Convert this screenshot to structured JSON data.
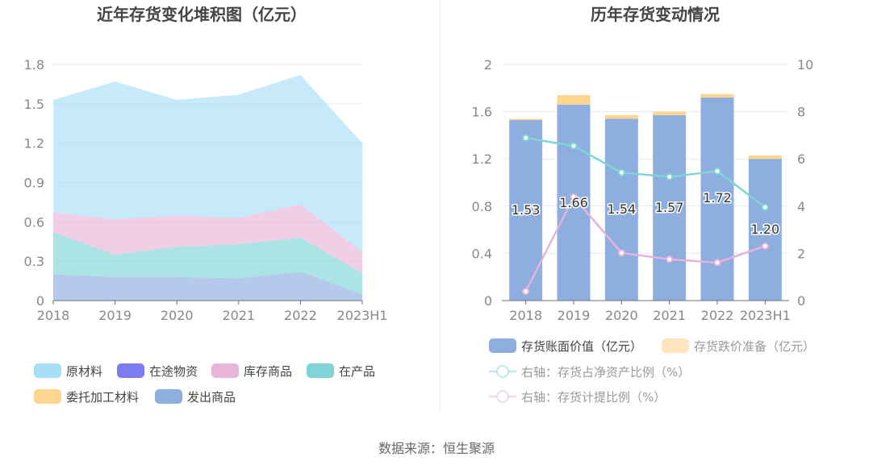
{
  "footer": "数据来源：恒生聚源",
  "chart_data": [
    {
      "type": "area",
      "stacked": true,
      "title": "近年存货变化堆积图（亿元）",
      "categories": [
        "2018",
        "2019",
        "2020",
        "2021",
        "2022",
        "2023H1"
      ],
      "ylim": [
        0,
        1.8
      ],
      "yticks": [
        "0",
        "0.3",
        "0.6",
        "0.9",
        "1.2",
        "1.5",
        "1.8"
      ],
      "grid": true,
      "legend_position": "bottom",
      "series": [
        {
          "name": "发出商品",
          "color": "#8eaedf",
          "values": [
            0.2,
            0.18,
            0.18,
            0.17,
            0.22,
            0.05
          ]
        },
        {
          "name": "在产品",
          "color": "#80d4d6",
          "values": [
            0.32,
            0.17,
            0.23,
            0.26,
            0.26,
            0.16
          ]
        },
        {
          "name": "库存商品",
          "color": "#e8b4d8",
          "values": [
            0.15,
            0.27,
            0.24,
            0.2,
            0.255,
            0.16
          ]
        },
        {
          "name": "委托加工材料",
          "color": "#ffd591",
          "values": [
            0,
            0,
            0,
            0,
            0,
            0
          ]
        },
        {
          "name": "在途物资",
          "color": "#7b7cf0",
          "values": [
            0,
            0,
            0,
            0,
            0,
            0
          ]
        },
        {
          "name": "原材料",
          "color": "#a8dff8",
          "values": [
            0.86,
            1.05,
            0.88,
            0.94,
            0.985,
            0.83
          ]
        }
      ],
      "legend_order": [
        "原材料",
        "在途物资",
        "库存商品",
        "在产品",
        "委托加工材料",
        "发出商品"
      ]
    },
    {
      "type": "bar",
      "title": "历年存货变动情况",
      "categories": [
        "2018",
        "2019",
        "2020",
        "2021",
        "2022",
        "2023H1"
      ],
      "ylim": [
        0,
        2
      ],
      "yticks": [
        "0",
        "0.4",
        "0.8",
        "1.2",
        "1.6",
        "2"
      ],
      "y2lim": [
        0,
        10
      ],
      "y2ticks": [
        "0",
        "2",
        "4",
        "6",
        "8",
        "10"
      ],
      "grid": true,
      "legend_position": "bottom",
      "bars": [
        {
          "name": "存货账面价值（亿元）",
          "color": "#8eaedf",
          "values": [
            1.53,
            1.66,
            1.54,
            1.57,
            1.72,
            1.2
          ],
          "labels": [
            "1.53",
            "1.66",
            "1.54",
            "1.57",
            "1.72",
            "1.20"
          ]
        },
        {
          "name": "存货跌价准备（亿元）",
          "color": "#ffd591",
          "values": [
            0.01,
            0.08,
            0.03,
            0.03,
            0.03,
            0.03
          ]
        }
      ],
      "lines": [
        {
          "name": "右轴：存货占净资产比例（%）",
          "color": "#7fd6d4",
          "values": [
            6.89,
            6.55,
            5.42,
            5.24,
            5.48,
            3.95
          ]
        },
        {
          "name": "右轴：存货计提比例（%）",
          "color": "#e6b3da",
          "values": [
            0.39,
            4.39,
            2.02,
            1.75,
            1.61,
            2.31
          ]
        }
      ]
    }
  ]
}
